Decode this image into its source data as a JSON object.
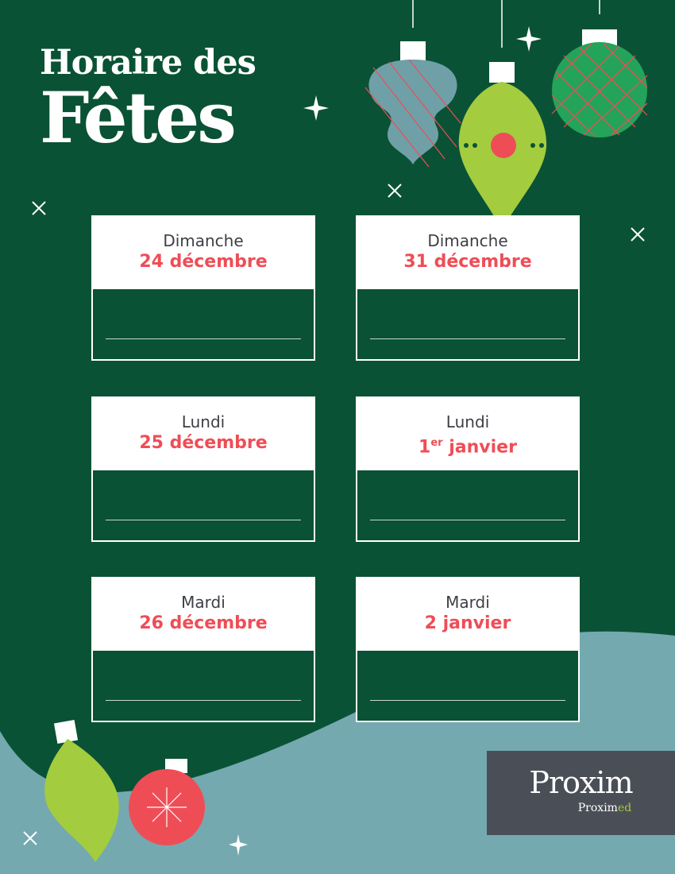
{
  "title": {
    "line1": "Horaire des",
    "line2": "Fêtes"
  },
  "colors": {
    "background": "#0a5235",
    "snow": "#74a9b0",
    "accent": "#ef4d56",
    "lime": "#a3cc3f",
    "logo_bg": "#4a4f57"
  },
  "cards": [
    {
      "day": "Dimanche",
      "date": "24 décembre",
      "sup": ""
    },
    {
      "day": "Dimanche",
      "date": "31 décembre",
      "sup": ""
    },
    {
      "day": "Lundi",
      "date": "25 décembre",
      "sup": ""
    },
    {
      "day": "Lundi",
      "date": " janvier",
      "num": "1",
      "sup": "er"
    },
    {
      "day": "Mardi",
      "date": "26 décembre",
      "sup": ""
    },
    {
      "day": "Mardi",
      "date": "2 janvier",
      "sup": ""
    }
  ],
  "logo": {
    "main": "Proxim",
    "sub_pre": "Proxim",
    "sub_ed": "ed"
  }
}
